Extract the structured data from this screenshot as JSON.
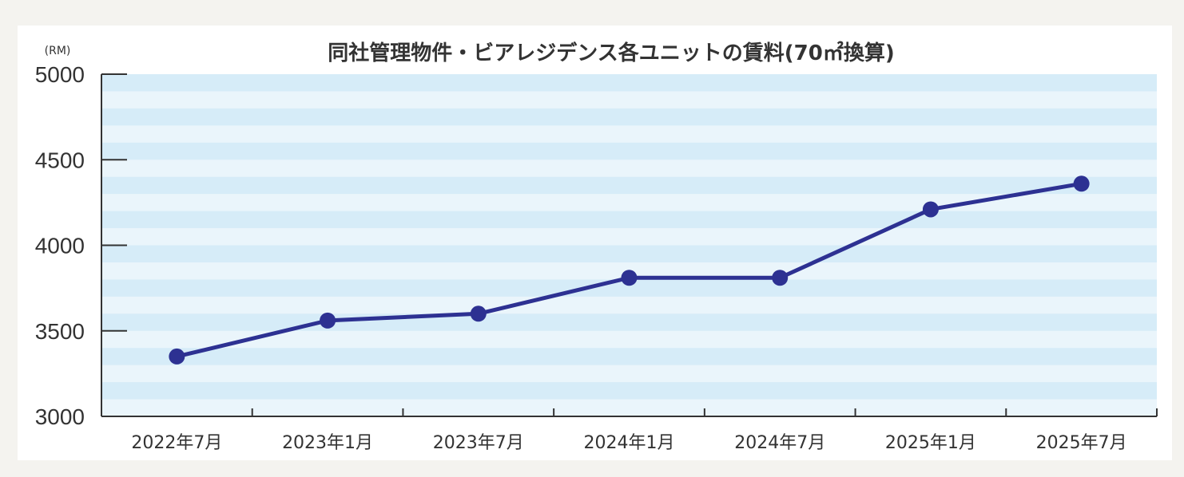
{
  "chart_data": {
    "type": "line",
    "title": "同社管理物件・ビアレジデンス各ユニットの賃料(70㎡換算)",
    "unit_label": "(RM)",
    "categories": [
      "2022年7月",
      "2023年1月",
      "2023年7月",
      "2024年1月",
      "2024年7月",
      "2025年1月",
      "2025年7月"
    ],
    "series": [
      {
        "values": [
          3350,
          3560,
          3600,
          3810,
          3810,
          4210,
          4360
        ]
      }
    ],
    "ylim": [
      3000,
      5000
    ],
    "yticks": [
      "5000",
      "4500",
      "4000",
      "3500",
      "3000"
    ],
    "grid": "horizontal light-blue stripes",
    "colors": {
      "line": "#2d3192",
      "marker": "#2d3192",
      "stripe_dark": "#d6ecf8",
      "stripe_light": "#eaf5fb",
      "axis": "#333333"
    }
  }
}
